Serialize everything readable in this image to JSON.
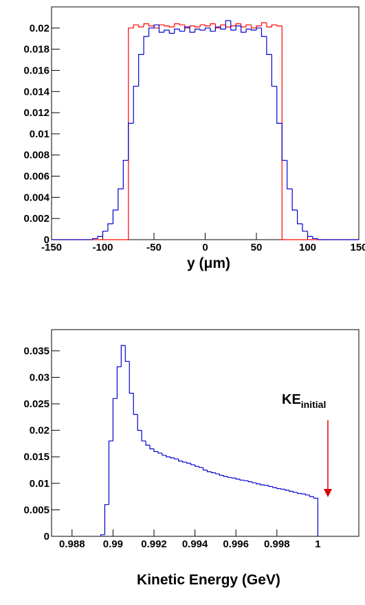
{
  "chart_data": [
    {
      "type": "histogram",
      "x_label": "y (μm)",
      "bins": [
        -150,
        -145,
        -140,
        -135,
        -130,
        -125,
        -120,
        -115,
        -110,
        -105,
        -100,
        -95,
        -90,
        -85,
        -80,
        -75,
        -70,
        -65,
        -60,
        -55,
        -50,
        -45,
        -40,
        -35,
        -30,
        -25,
        -20,
        -15,
        -10,
        -5,
        0,
        5,
        10,
        15,
        20,
        25,
        30,
        35,
        40,
        45,
        50,
        55,
        60,
        65,
        70,
        75,
        80,
        85,
        90,
        95,
        100,
        105,
        110,
        115,
        120,
        125,
        130,
        135,
        140,
        145,
        150
      ],
      "series": [
        {
          "color": "#ff0000",
          "values": [
            0,
            0,
            0,
            0,
            0,
            0,
            0,
            0,
            0,
            0,
            0,
            0,
            0,
            0,
            0,
            0.02,
            0.0203,
            0.0201,
            0.0204,
            0.0202,
            0.02,
            0.0203,
            0.0202,
            0.0201,
            0.0204,
            0.0203,
            0.02,
            0.0202,
            0.0201,
            0.0203,
            0.0202,
            0.0204,
            0.02,
            0.0203,
            0.0201,
            0.0202,
            0.0204,
            0.0201,
            0.0203,
            0.02,
            0.0202,
            0.0205,
            0.0201,
            0.0203,
            0.0202,
            0,
            0,
            0,
            0,
            0,
            0,
            0,
            0,
            0,
            0,
            0,
            0,
            0,
            0,
            0
          ]
        },
        {
          "color": "#0000cc",
          "values": [
            0,
            0,
            0,
            0,
            0,
            0,
            0,
            0,
            0.0001,
            0.0003,
            0.0008,
            0.0015,
            0.0028,
            0.0048,
            0.0075,
            0.011,
            0.0145,
            0.0175,
            0.0192,
            0.02,
            0.0203,
            0.0196,
            0.0198,
            0.0195,
            0.0199,
            0.0197,
            0.0201,
            0.0196,
            0.0199,
            0.0198,
            0.02,
            0.0197,
            0.0201,
            0.0199,
            0.0207,
            0.0198,
            0.0202,
            0.0196,
            0.0199,
            0.0198,
            0.02,
            0.0192,
            0.0175,
            0.0145,
            0.011,
            0.0075,
            0.0048,
            0.0028,
            0.0015,
            0.0008,
            0.0003,
            0.0001,
            0,
            0,
            0,
            0,
            0,
            0,
            0,
            0
          ]
        }
      ],
      "xlim": [
        -150,
        150
      ],
      "xticks": [
        -150,
        -100,
        -50,
        0,
        50,
        100,
        150
      ],
      "ylim": [
        0,
        0.022
      ],
      "yticks": [
        0,
        0.002,
        0.004,
        0.006,
        0.008,
        0.01,
        0.012,
        0.014,
        0.016,
        0.018,
        0.02
      ]
    },
    {
      "type": "histogram",
      "x_label": "Kinetic Energy (GeV)",
      "bins": [
        0.9894,
        0.9896,
        0.9898,
        0.99,
        0.9902,
        0.9904,
        0.9906,
        0.9908,
        0.991,
        0.9912,
        0.9914,
        0.9916,
        0.9918,
        0.992,
        0.9922,
        0.9924,
        0.9926,
        0.9928,
        0.993,
        0.9932,
        0.9934,
        0.9936,
        0.9938,
        0.994,
        0.9942,
        0.9944,
        0.9946,
        0.9948,
        0.995,
        0.9952,
        0.9954,
        0.9956,
        0.9958,
        0.996,
        0.9962,
        0.9964,
        0.9966,
        0.9968,
        0.997,
        0.9972,
        0.9974,
        0.9976,
        0.9978,
        0.998,
        0.9982,
        0.9984,
        0.9986,
        0.9988,
        0.999,
        0.9992,
        0.9994,
        0.9996,
        0.9998,
        1.0
      ],
      "series": [
        {
          "color": "#0000cc",
          "values": [
            0.0003,
            0.006,
            0.018,
            0.026,
            0.032,
            0.036,
            0.033,
            0.027,
            0.023,
            0.02,
            0.018,
            0.0172,
            0.0165,
            0.016,
            0.0157,
            0.0153,
            0.015,
            0.0148,
            0.0146,
            0.0142,
            0.014,
            0.0138,
            0.0135,
            0.0132,
            0.013,
            0.0125,
            0.0122,
            0.012,
            0.0118,
            0.0115,
            0.0113,
            0.0111,
            0.011,
            0.0108,
            0.0106,
            0.0105,
            0.0103,
            0.0101,
            0.0099,
            0.0097,
            0.0096,
            0.0094,
            0.0092,
            0.009,
            0.0089,
            0.0087,
            0.0085,
            0.0083,
            0.0081,
            0.008,
            0.0078,
            0.0075,
            0.0072
          ]
        }
      ],
      "xlim": [
        0.987,
        1.002
      ],
      "xticks": [
        0.988,
        0.99,
        0.992,
        0.994,
        0.996,
        0.998,
        1
      ],
      "ylim": [
        0,
        0.039
      ],
      "yticks": [
        0,
        0.005,
        0.01,
        0.015,
        0.02,
        0.025,
        0.03,
        0.035
      ],
      "annotation": {
        "text": "KE",
        "subscript": "initial"
      }
    }
  ]
}
